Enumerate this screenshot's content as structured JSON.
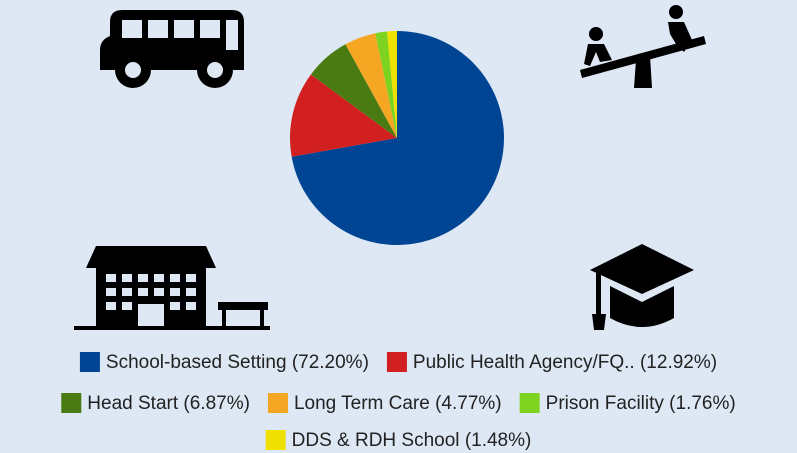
{
  "chart_data": {
    "type": "pie",
    "categories": [
      "School-based Setting",
      "Public Health Agency/FQ..",
      "Head Start",
      "Long Term Care",
      "Prison Facility",
      "DDS & RDH School"
    ],
    "values": [
      72.2,
      12.92,
      6.87,
      4.77,
      1.76,
      1.48
    ],
    "value_labels": [
      "(72.20%)",
      "(12.92%)",
      "(6.87%)",
      "(4.77%)",
      "(1.76%)",
      "(1.48%)"
    ],
    "colors": [
      "#004494",
      "#d21f1f",
      "#4a7a12",
      "#f5a623",
      "#7ed321",
      "#f0e000"
    ],
    "legend": "bottom"
  }
}
